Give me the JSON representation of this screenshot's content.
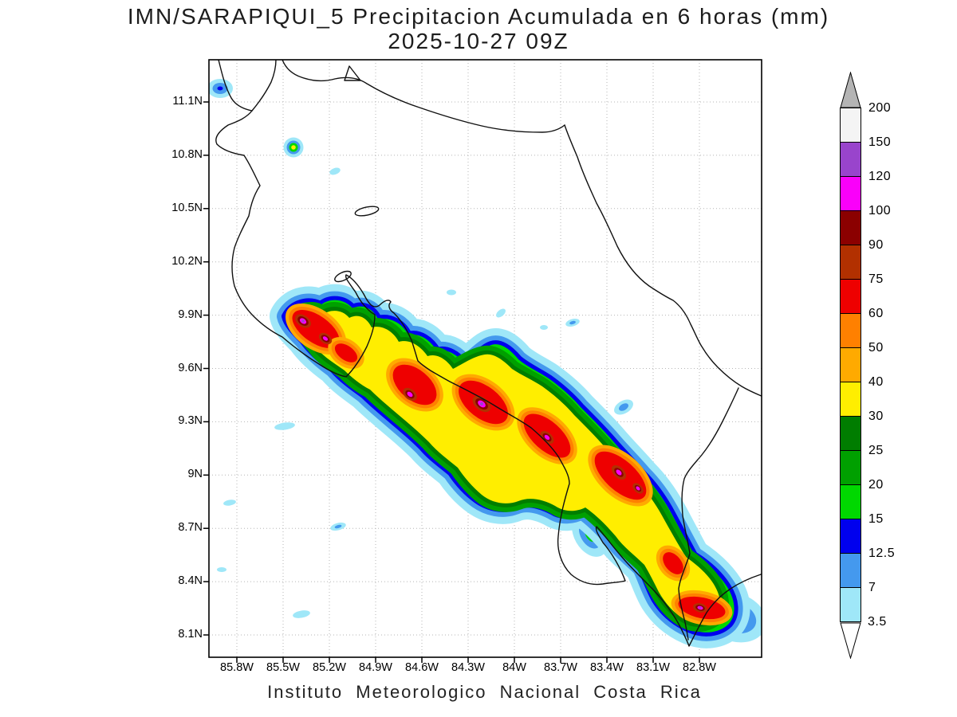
{
  "title": {
    "line1": "IMN/SARAPIQUI_5 Precipitacion Acumulada en 6 horas (mm)",
    "line2": "2025-10-27 09Z"
  },
  "footer": {
    "text": "Instituto Meteorologico Nacional Costa Rica"
  },
  "map": {
    "axes": {
      "lon_ticks": [
        "85.8W",
        "85.5W",
        "85.2W",
        "84.9W",
        "84.6W",
        "84.3W",
        "84W",
        "83.7W",
        "83.4W",
        "83.1W",
        "82.8W"
      ],
      "lat_ticks": [
        "11.1N",
        "10.8N",
        "10.5N",
        "10.2N",
        "9.9N",
        "9.6N",
        "9.3N",
        "9N",
        "8.7N",
        "8.4N",
        "8.1N"
      ]
    }
  },
  "legend": {
    "cells_top_to_bottom": [
      {
        "label": "200",
        "color": "#f4f4f4"
      },
      {
        "label": "150",
        "color": "#9944cc"
      },
      {
        "label": "120",
        "color": "#fa00fa"
      },
      {
        "label": "100",
        "color": "#8b0000"
      },
      {
        "label": "90",
        "color": "#b23000"
      },
      {
        "label": "75",
        "color": "#ee0000"
      },
      {
        "label": "60",
        "color": "#ff8000"
      },
      {
        "label": "50",
        "color": "#ffaa00"
      },
      {
        "label": "40",
        "color": "#ffee00"
      },
      {
        "label": "30",
        "color": "#007d00"
      },
      {
        "label": "25",
        "color": "#00a000"
      },
      {
        "label": "20",
        "color": "#00d800"
      },
      {
        "label": "15",
        "color": "#0000ee"
      },
      {
        "label": "12.5",
        "color": "#4499ee"
      },
      {
        "label": "7",
        "color": "#9fe7f8"
      }
    ],
    "bottom_label": "3.5",
    "over_arrow_color": "#b4b4b4",
    "under_arrow_color": "#ffffff"
  },
  "chart_data": {
    "type": "heatmap",
    "title": "IMN/SARAPIQUI_5 Precipitacion Acumulada en 6 horas (mm)",
    "subtitle": "2025-10-27 09Z",
    "variable": "Precipitacion Acumulada en 6 horas",
    "units": "mm",
    "x_ticks": [
      "85.8W",
      "85.5W",
      "85.2W",
      "84.9W",
      "84.6W",
      "84.3W",
      "84W",
      "83.7W",
      "83.4W",
      "83.1W",
      "82.8W"
    ],
    "y_ticks": [
      "11.1N",
      "10.8N",
      "10.5N",
      "10.2N",
      "9.9N",
      "9.6N",
      "9.3N",
      "9N",
      "8.7N",
      "8.4N",
      "8.1N"
    ],
    "levels_mm": [
      3.5,
      7,
      12.5,
      15,
      20,
      25,
      30,
      40,
      50,
      60,
      75,
      90,
      100,
      120,
      150,
      200
    ],
    "level_colors_low_to_high": [
      "#9fe7f8",
      "#4499ee",
      "#0000ee",
      "#00d800",
      "#00a000",
      "#007d00",
      "#ffee00",
      "#ffaa00",
      "#ff8000",
      "#ee0000",
      "#b23000",
      "#8b0000",
      "#fa00fa",
      "#9944cc",
      "#f4f4f4"
    ],
    "over_color": "#b4b4b4",
    "legend_position": "right",
    "grid": true,
    "region_outline": "Costa Rica",
    "pattern": "Heavy precipitation band (30 to 150+ mm) oriented NW-SE along the cordillera from about 85.5W,9.9N to 82.9W,8.2N, with isolated light showers elsewhere",
    "source": "Instituto Meteorologico Nacional Costa Rica"
  }
}
